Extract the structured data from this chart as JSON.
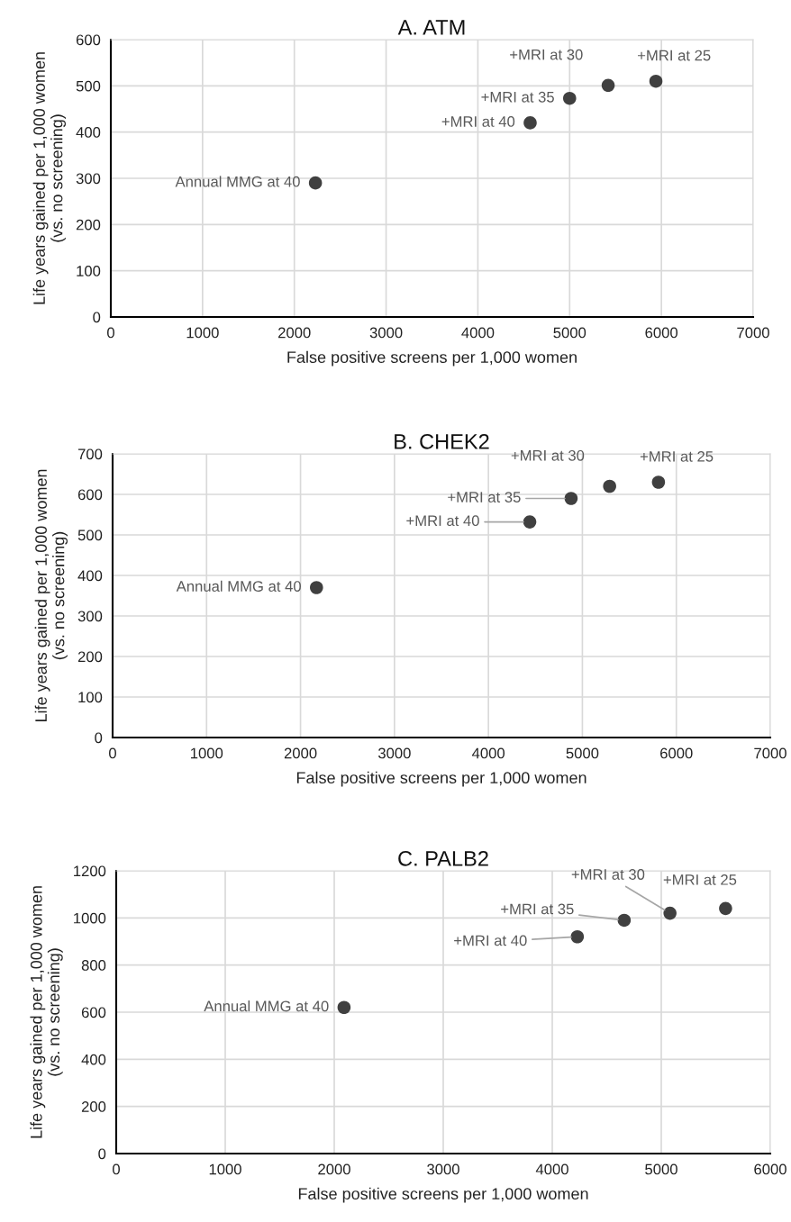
{
  "chart_data": [
    {
      "type": "scatter",
      "title": "A. ATM",
      "xlabel": "False positive screens per 1,000 women",
      "ylabel": "Life years gained per 1,000 women\n(vs. no screening)",
      "x": [
        2230,
        4570,
        5000,
        5420,
        5940
      ],
      "series": [
        {
          "color": "#404040",
          "values": [
            290,
            420,
            473,
            501,
            510
          ]
        }
      ],
      "annotations": [
        {
          "text": "Annual MMG at 40",
          "x": 2230,
          "y": 290
        },
        {
          "text": "+MRI at 40",
          "x": 4570,
          "y": 420
        },
        {
          "text": "+MRI at 35",
          "x": 5000,
          "y": 473
        },
        {
          "text": "+MRI at 30",
          "x": 5420,
          "y": 501
        },
        {
          "text": "+MRI at 25",
          "x": 5940,
          "y": 510
        }
      ],
      "xlim": [
        0,
        7000
      ],
      "xticks": [
        0,
        1000,
        2000,
        3000,
        4000,
        5000,
        6000,
        7000
      ],
      "ylim": [
        0,
        600
      ],
      "yticks": [
        0,
        100,
        200,
        300,
        400,
        500,
        600
      ],
      "grid": true,
      "marker": "circle"
    },
    {
      "type": "scatter",
      "title": "B. CHEK2",
      "xlabel": "False positive screens per 1,000 women",
      "ylabel": "Life years gained per 1,000 women\n(vs. no screening)",
      "x": [
        2170,
        4440,
        4880,
        5290,
        5810
      ],
      "series": [
        {
          "color": "#404040",
          "values": [
            370,
            532,
            590,
            620,
            630
          ]
        }
      ],
      "annotations": [
        {
          "text": "Annual MMG at 40",
          "x": 2170,
          "y": 370
        },
        {
          "text": "+MRI at 40",
          "x": 4440,
          "y": 532
        },
        {
          "text": "+MRI at 35",
          "x": 4880,
          "y": 590
        },
        {
          "text": "+MRI at 30",
          "x": 5290,
          "y": 620
        },
        {
          "text": "+MRI at 25",
          "x": 5810,
          "y": 630
        }
      ],
      "xlim": [
        0,
        7000
      ],
      "xticks": [
        0,
        1000,
        2000,
        3000,
        4000,
        5000,
        6000,
        7000
      ],
      "ylim": [
        0,
        700
      ],
      "yticks": [
        0,
        100,
        200,
        300,
        400,
        500,
        600,
        700
      ],
      "grid": true,
      "marker": "circle"
    },
    {
      "type": "scatter",
      "title": "C. PALB2",
      "xlabel": "False positive screens per 1,000 women",
      "ylabel": "Life years gained per 1,000 women\n(vs. no screening)",
      "x": [
        2090,
        4230,
        4660,
        5080,
        5590
      ],
      "series": [
        {
          "color": "#404040",
          "values": [
            620,
            920,
            990,
            1020,
            1040
          ]
        }
      ],
      "annotations": [
        {
          "text": "Annual MMG at 40",
          "x": 2090,
          "y": 620
        },
        {
          "text": "+MRI at 40",
          "x": 4230,
          "y": 920
        },
        {
          "text": "+MRI at 35",
          "x": 4660,
          "y": 990
        },
        {
          "text": "+MRI at 30",
          "x": 5080,
          "y": 1020
        },
        {
          "text": "+MRI at 25",
          "x": 5590,
          "y": 1040
        }
      ],
      "xlim": [
        0,
        6000
      ],
      "xticks": [
        0,
        1000,
        2000,
        3000,
        4000,
        5000,
        6000
      ],
      "ylim": [
        0,
        1200
      ],
      "yticks": [
        0,
        200,
        400,
        600,
        800,
        1000,
        1200
      ],
      "grid": true,
      "marker": "circle"
    }
  ]
}
